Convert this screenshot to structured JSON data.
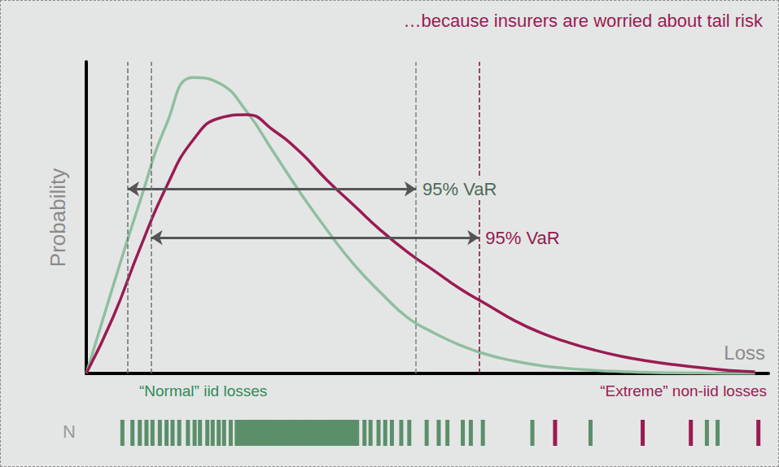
{
  "chart_data": {
    "type": "line",
    "title": "…because insurers are worried about tail risk",
    "y_label": "Probability",
    "x_label": "Loss",
    "tick_labels": false,
    "grid": false,
    "xlim": [
      0,
      102
    ],
    "ylim": [
      0,
      100
    ],
    "x": [
      0,
      4,
      8,
      12,
      16,
      20,
      24,
      28,
      32,
      36,
      40,
      44,
      48,
      52,
      56,
      60,
      64,
      68,
      72,
      76,
      80,
      84,
      88,
      92,
      96,
      100
    ],
    "series": [
      {
        "color": "#8fbf9f",
        "values": [
          0,
          28,
          55,
          80,
          95,
          93,
          84,
          71,
          58,
          46,
          35,
          26,
          18,
          13,
          9,
          6,
          4,
          2.5,
          1.6,
          1,
          0.6,
          0.3,
          0.2,
          0.1,
          0,
          0
        ],
        "var_label": "95% VaR",
        "var_lines": [
          6.2,
          49.3
        ],
        "arrow_y": 59.2
      },
      {
        "color": "#9b1b52",
        "values": [
          0,
          18,
          40,
          60,
          75,
          82,
          83,
          78,
          71,
          62,
          54,
          46,
          39,
          33,
          27,
          22,
          17,
          13,
          10,
          7.5,
          5.5,
          4,
          2.8,
          1.8,
          1,
          0.5
        ],
        "var_label": "95% VaR",
        "var_lines": [
          9.7,
          58.7
        ],
        "arrow_y": 43.6
      }
    ],
    "region_labels": [
      {
        "text": "“Normal” iid losses",
        "color": "#2e8b57"
      },
      {
        "text": "“Extreme” non-iid losses",
        "color": "#9b1b52"
      }
    ],
    "events": {
      "label": "N",
      "series": [
        {
          "color": "#5a8f6a",
          "x": [
            5.4,
            6.9,
            8.0,
            9.0,
            9.9,
            11.0,
            12.0,
            12.9,
            13.9,
            15.2,
            16.2,
            17.0,
            18.1,
            18.9,
            19.8,
            20.6,
            21.6,
            22.5,
            23.0,
            23.5,
            24.0,
            24.5,
            25.0,
            25.5,
            26.0,
            26.5,
            27.0,
            27.5,
            28.0,
            28.5,
            29.0,
            29.5,
            30.0,
            30.5,
            31.0,
            31.5,
            32.0,
            32.5,
            33.0,
            33.5,
            34.0,
            34.5,
            35.0,
            35.5,
            36.0,
            36.5,
            37.0,
            37.5,
            38.0,
            38.5,
            39.0,
            39.5,
            40.0,
            40.5,
            41.6,
            42.5,
            43.7,
            44.7,
            45.7,
            47.1,
            48.3,
            50.9,
            52.7,
            54.0,
            56.3,
            57.5,
            59.3,
            66.7,
            75.4,
            92.8,
            94.4
          ]
        },
        {
          "color": "#9b1b52",
          "x": [
            70.1,
            83.2,
            90.4,
            100.5
          ]
        }
      ]
    }
  }
}
